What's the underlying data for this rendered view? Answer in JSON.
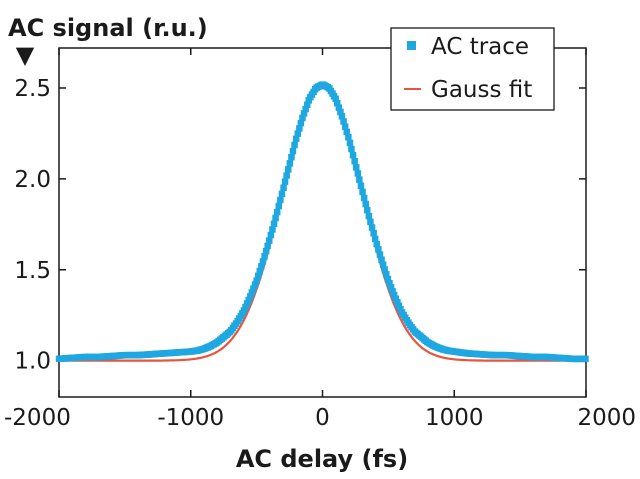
{
  "chart_data": {
    "type": "scatter",
    "ylabel": "AC signal (r.u.)",
    "xlabel": "AC delay (fs)",
    "xlim": [
      -2000,
      2000
    ],
    "ylim": [
      0.8,
      2.72
    ],
    "xticks": [
      -2000,
      -1000,
      0,
      1000,
      2000
    ],
    "xtick_labels": [
      "-2000",
      "-1000",
      "0",
      "1000",
      "2000"
    ],
    "yticks": [
      1.0,
      1.5,
      2.0,
      2.5
    ],
    "ytick_labels": [
      "1.0",
      "1.5",
      "2.0",
      "2.5"
    ],
    "grid": false,
    "legend_position": "top-right",
    "series": [
      {
        "name": "AC trace",
        "style": "markers",
        "color": "#1ea7e1",
        "x": [
          -2000,
          -1900,
          -1800,
          -1700,
          -1600,
          -1500,
          -1400,
          -1300,
          -1200,
          -1100,
          -1000,
          -950,
          -900,
          -850,
          -800,
          -750,
          -700,
          -650,
          -600,
          -550,
          -500,
          -450,
          -400,
          -350,
          -300,
          -250,
          -200,
          -150,
          -100,
          -50,
          0,
          50,
          100,
          150,
          200,
          250,
          300,
          350,
          400,
          450,
          500,
          550,
          600,
          650,
          700,
          750,
          800,
          850,
          900,
          950,
          1000,
          1100,
          1200,
          1300,
          1400,
          1500,
          1600,
          1700,
          1800,
          1900,
          2000
        ],
        "y": [
          1.01,
          1.015,
          1.02,
          1.02,
          1.025,
          1.03,
          1.03,
          1.035,
          1.04,
          1.045,
          1.05,
          1.055,
          1.065,
          1.08,
          1.1,
          1.13,
          1.16,
          1.21,
          1.27,
          1.35,
          1.44,
          1.55,
          1.67,
          1.8,
          1.94,
          2.08,
          2.22,
          2.34,
          2.44,
          2.5,
          2.52,
          2.5,
          2.44,
          2.34,
          2.22,
          2.08,
          1.94,
          1.8,
          1.67,
          1.55,
          1.44,
          1.35,
          1.27,
          1.21,
          1.16,
          1.13,
          1.1,
          1.08,
          1.065,
          1.055,
          1.05,
          1.04,
          1.035,
          1.03,
          1.03,
          1.025,
          1.02,
          1.02,
          1.015,
          1.01,
          1.01
        ]
      },
      {
        "name": "Gauss fit",
        "style": "line",
        "color": "#e8553e",
        "peak": 2.5,
        "baseline": 1.0,
        "center": 0,
        "fwhm": 720
      }
    ],
    "annotations": [
      "▼"
    ]
  }
}
